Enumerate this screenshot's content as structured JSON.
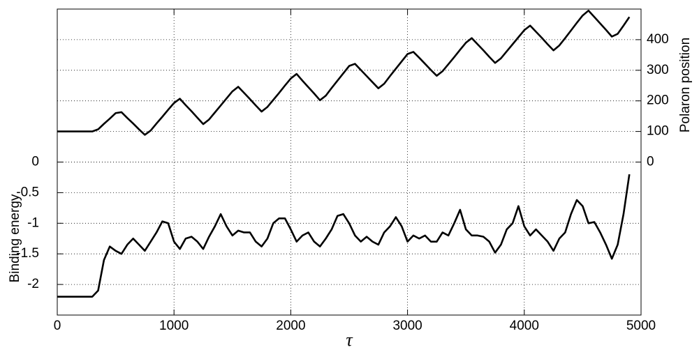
{
  "chart_data": {
    "type": "line",
    "xlabel": "τ",
    "ylabel": "Binding energy",
    "y2label": "Polaron position",
    "x": [
      0,
      50,
      100,
      150,
      200,
      250,
      300,
      350,
      400,
      450,
      500,
      550,
      600,
      650,
      700,
      750,
      800,
      850,
      900,
      950,
      1000,
      1050,
      1100,
      1150,
      1200,
      1250,
      1300,
      1350,
      1400,
      1450,
      1500,
      1550,
      1600,
      1650,
      1700,
      1750,
      1800,
      1850,
      1900,
      1950,
      2000,
      2050,
      2100,
      2150,
      2200,
      2250,
      2300,
      2350,
      2400,
      2450,
      2500,
      2550,
      2600,
      2650,
      2700,
      2750,
      2800,
      2850,
      2900,
      2950,
      3000,
      3050,
      3100,
      3150,
      3200,
      3250,
      3300,
      3350,
      3400,
      3450,
      3500,
      3550,
      3600,
      3650,
      3700,
      3750,
      3800,
      3850,
      3900,
      3950,
      4000,
      4050,
      4100,
      4150,
      4200,
      4250,
      4300,
      4350,
      4400,
      4450,
      4500,
      4550,
      4600,
      4650,
      4700,
      4750,
      4800,
      4850,
      4900
    ],
    "series": [
      {
        "name": "Binding energy",
        "color": "#000000",
        "axis": "y",
        "values": [
          -2.2,
          -2.2,
          -2.2,
          -2.2,
          -2.2,
          -2.2,
          -2.2,
          -2.1,
          -1.6,
          -1.38,
          -1.45,
          -1.5,
          -1.35,
          -1.25,
          -1.35,
          -1.45,
          -1.3,
          -1.15,
          -0.97,
          -1.0,
          -1.3,
          -1.42,
          -1.25,
          -1.22,
          -1.3,
          -1.42,
          -1.22,
          -1.05,
          -0.85,
          -1.05,
          -1.2,
          -1.12,
          -1.15,
          -1.15,
          -1.3,
          -1.38,
          -1.25,
          -1.0,
          -0.92,
          -0.92,
          -1.1,
          -1.3,
          -1.2,
          -1.15,
          -1.3,
          -1.38,
          -1.25,
          -1.1,
          -0.88,
          -0.85,
          -1.0,
          -1.2,
          -1.3,
          -1.22,
          -1.3,
          -1.35,
          -1.15,
          -1.05,
          -0.9,
          -1.05,
          -1.3,
          -1.2,
          -1.25,
          -1.2,
          -1.3,
          -1.3,
          -1.15,
          -1.2,
          -1.0,
          -0.78,
          -1.1,
          -1.2,
          -1.2,
          -1.22,
          -1.3,
          -1.48,
          -1.35,
          -1.1,
          -1.0,
          -0.72,
          -1.05,
          -1.2,
          -1.1,
          -1.2,
          -1.3,
          -1.45,
          -1.25,
          -1.15,
          -0.85,
          -0.62,
          -0.72,
          -1.0,
          -0.98,
          -1.15,
          -1.35,
          -1.58,
          -1.35,
          -0.85,
          -0.2
        ]
      },
      {
        "name": "Polaron position",
        "color": "#000000",
        "axis": "y2",
        "values": [
          100,
          100,
          100,
          100,
          100,
          100,
          100,
          107,
          125,
          142,
          160,
          163,
          144,
          126,
          107,
          89,
          103,
          126,
          148,
          171,
          193,
          207,
          186,
          166,
          145,
          124,
          139,
          162,
          185,
          208,
          231,
          246,
          226,
          206,
          185,
          165,
          180,
          203,
          226,
          250,
          273,
          288,
          266,
          245,
          224,
          202,
          217,
          242,
          266,
          290,
          314,
          321,
          301,
          281,
          261,
          241,
          256,
          281,
          305,
          329,
          353,
          360,
          341,
          321,
          301,
          282,
          297,
          320,
          343,
          367,
          390,
          405,
          385,
          365,
          344,
          324,
          339,
          362,
          385,
          408,
          431,
          446,
          426,
          406,
          385,
          365,
          381,
          405,
          430,
          455,
          479,
          495,
          474,
          453,
          432,
          410,
          419,
          446,
          474
        ]
      }
    ],
    "xlim": [
      0,
      5000
    ],
    "xticks": [
      0,
      1000,
      2000,
      3000,
      4000,
      5000
    ],
    "ylim": [
      -2.5,
      2.5
    ],
    "yticks": [
      -2,
      -1.5,
      -1,
      -0.5,
      0
    ],
    "y2lim": [
      -500,
      500
    ],
    "y2ticks": [
      0,
      100,
      200,
      300,
      400
    ],
    "grid": true
  }
}
